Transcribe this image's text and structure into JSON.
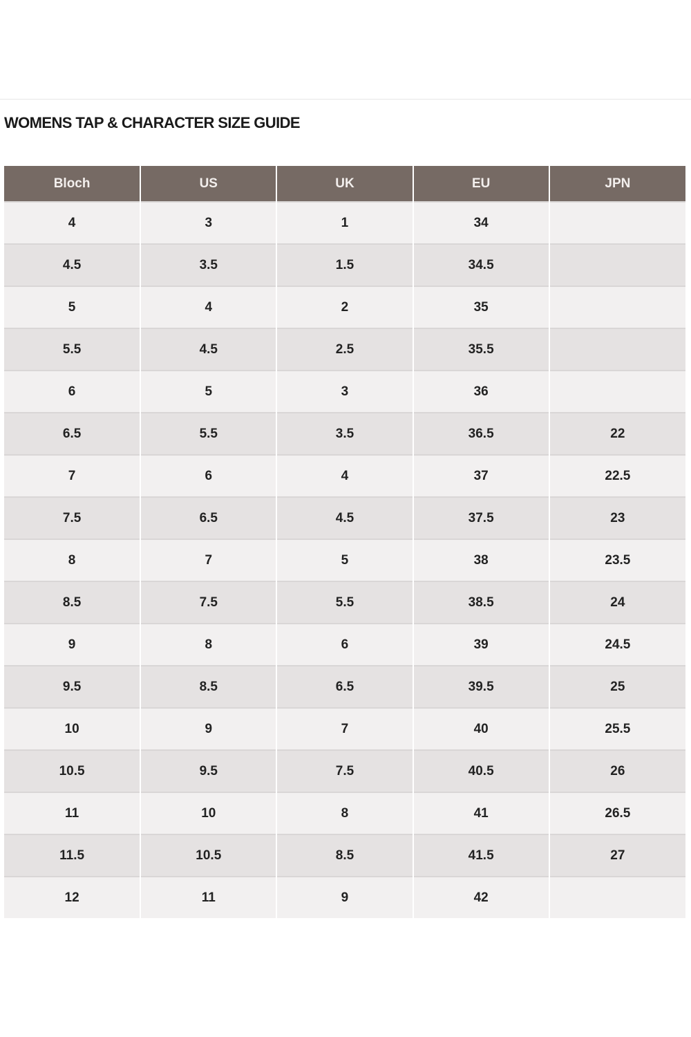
{
  "title": "WOMENS TAP & CHARACTER SIZE GUIDE",
  "colors": {
    "header_bg": "#766a64",
    "row_light": "#f2f0f0",
    "row_dark": "#e5e2e2"
  },
  "columns": [
    "Bloch",
    "US",
    "UK",
    "EU",
    "JPN"
  ],
  "rows": [
    [
      "4",
      "3",
      "1",
      "34",
      ""
    ],
    [
      "4.5",
      "3.5",
      "1.5",
      "34.5",
      ""
    ],
    [
      "5",
      "4",
      "2",
      "35",
      ""
    ],
    [
      "5.5",
      "4.5",
      "2.5",
      "35.5",
      ""
    ],
    [
      "6",
      "5",
      "3",
      "36",
      ""
    ],
    [
      "6.5",
      "5.5",
      "3.5",
      "36.5",
      "22"
    ],
    [
      "7",
      "6",
      "4",
      "37",
      "22.5"
    ],
    [
      "7.5",
      "6.5",
      "4.5",
      "37.5",
      "23"
    ],
    [
      "8",
      "7",
      "5",
      "38",
      "23.5"
    ],
    [
      "8.5",
      "7.5",
      "5.5",
      "38.5",
      "24"
    ],
    [
      "9",
      "8",
      "6",
      "39",
      "24.5"
    ],
    [
      "9.5",
      "8.5",
      "6.5",
      "39.5",
      "25"
    ],
    [
      "10",
      "9",
      "7",
      "40",
      "25.5"
    ],
    [
      "10.5",
      "9.5",
      "7.5",
      "40.5",
      "26"
    ],
    [
      "11",
      "10",
      "8",
      "41",
      "26.5"
    ],
    [
      "11.5",
      "10.5",
      "8.5",
      "41.5",
      "27"
    ],
    [
      "12",
      "11",
      "9",
      "42",
      ""
    ]
  ]
}
